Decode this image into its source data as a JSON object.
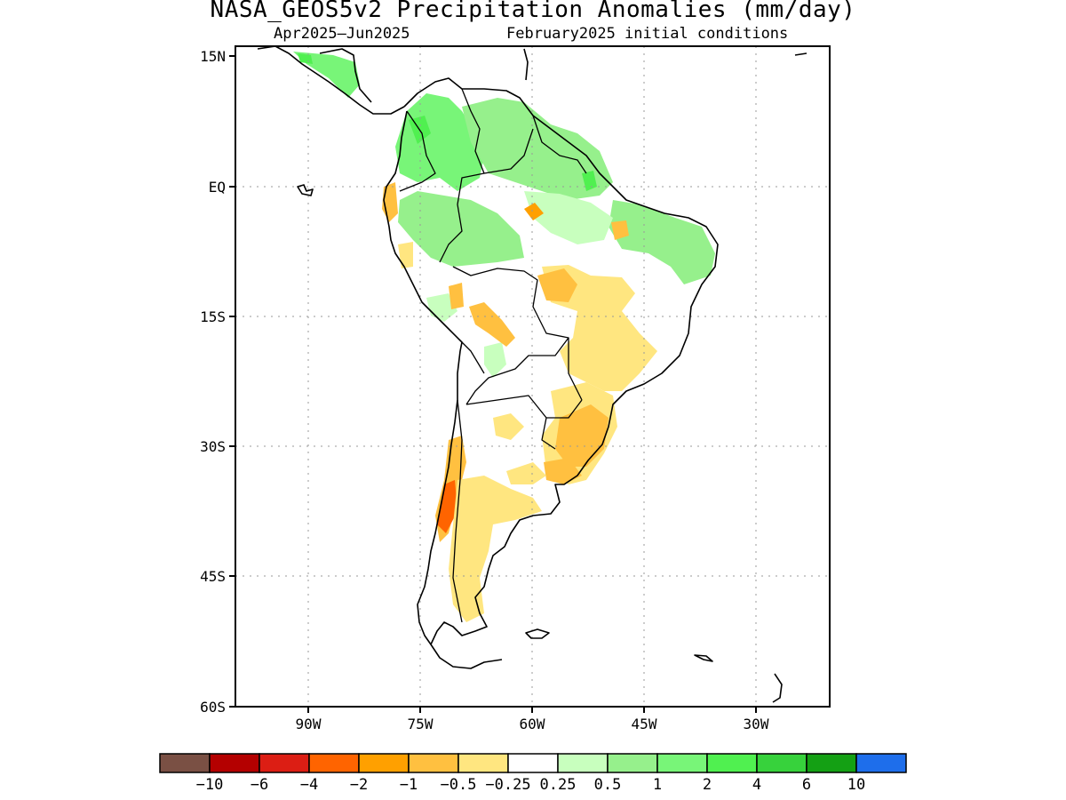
{
  "title": "NASA_GEOS5v2 Precipitation Anomalies (mm/day)",
  "subtitle_left": "Apr2025–Jun2025",
  "subtitle_right": "February2025 initial conditions",
  "map": {
    "lon_range": [
      -97.5,
      -20
    ],
    "lat_range": [
      -60,
      15
    ],
    "lat_ticks": [
      {
        "value": 15,
        "label": "15N"
      },
      {
        "value": 0,
        "label": "EQ"
      },
      {
        "value": -15,
        "label": "15S"
      },
      {
        "value": -30,
        "label": "30S"
      },
      {
        "value": -45,
        "label": "45S"
      },
      {
        "value": -60,
        "label": "60S"
      }
    ],
    "lon_ticks": [
      {
        "value": -90,
        "label": "90W"
      },
      {
        "value": -75,
        "label": "75W"
      },
      {
        "value": -60,
        "label": "60W"
      },
      {
        "value": -45,
        "label": "45W"
      },
      {
        "value": -30,
        "label": "30W"
      }
    ],
    "grid": "dotted"
  },
  "colorbar": {
    "colors": [
      "#7a5044",
      "#b40000",
      "#dc1e14",
      "#ff6400",
      "#ffa000",
      "#ffc040",
      "#ffe680",
      "#ffffff",
      "#c8ffbe",
      "#96f08c",
      "#78f578",
      "#50f050",
      "#37d23c",
      "#14a014",
      "#1e6eeb"
    ],
    "labels": [
      "−10",
      "−6",
      "−4",
      "−2",
      "−1",
      "−0.5",
      "−0.25",
      "0.25",
      "0.5",
      "1",
      "2",
      "4",
      "6",
      "10"
    ]
  }
}
